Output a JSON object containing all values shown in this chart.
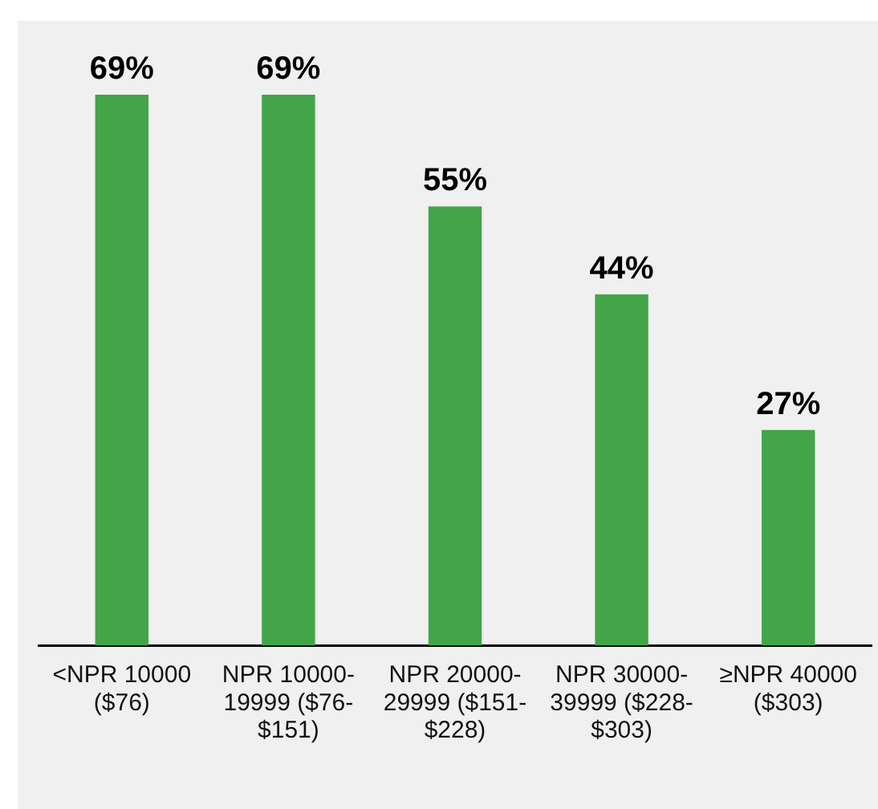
{
  "chart_data": {
    "type": "bar",
    "categories": [
      "<NPR 10000 ($76)",
      "NPR 10000-19999 ($76-$151)",
      "NPR 20000-29999 ($151-$228)",
      "NPR 30000-39999 ($228-$303)",
      "≥NPR 40000 ($303)"
    ],
    "values": [
      69,
      69,
      55,
      44,
      27
    ],
    "color": "#43a548",
    "value_labels": [
      "69%",
      "69%",
      "55%",
      "44%",
      "27%"
    ],
    "tick_labels": "x"
  }
}
